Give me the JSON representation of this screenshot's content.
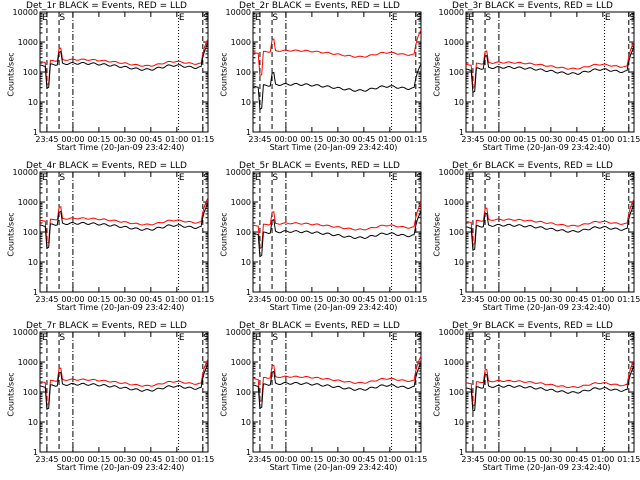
{
  "window_title": "",
  "x_tick_labels": [
    "23:45",
    "00:00",
    "00:15",
    "00:30",
    "00:45",
    "01:00",
    "01:15"
  ],
  "y_tick_labels": [
    "1",
    "10",
    "100",
    "1000",
    "10000"
  ],
  "ylabel": "Counts/sec",
  "xlabel": "Start Time (20-Jan-09 23:42:40)",
  "colors": {
    "events": "#000000",
    "lld": "#ff0000"
  },
  "chart_data": [
    {
      "type": "line",
      "title": "Det_1r BLACK = Events, RED = LLD",
      "xlabel": "Start Time (20-Jan-09 23:42:40)",
      "ylabel": "Counts/sec",
      "x_minutes_start": -17,
      "x_minutes_end": 80,
      "yscale": "log",
      "ylim": [
        1,
        10000
      ],
      "marker_labels": [
        {
          "text": "E",
          "at": -17
        },
        {
          "text": "S",
          "at": -7
        },
        {
          "text": "E",
          "at": 62
        },
        {
          "text": "S",
          "at": 76
        }
      ],
      "events_baseline": 150,
      "lld_baseline": 200
    },
    {
      "type": "line",
      "title": "Det_2r BLACK = Events, RED = LLD",
      "xlabel": "Start Time (20-Jan-09 23:42:40)",
      "ylabel": "Counts/sec",
      "x_minutes_start": -17,
      "x_minutes_end": 80,
      "yscale": "log",
      "ylim": [
        1,
        10000
      ],
      "marker_labels": [
        {
          "text": "E",
          "at": -17
        },
        {
          "text": "S",
          "at": -7
        },
        {
          "text": "E",
          "at": 62
        },
        {
          "text": "S",
          "at": 76
        }
      ],
      "events_baseline": 30,
      "lld_baseline": 400
    },
    {
      "type": "line",
      "title": "Det_3r BLACK = Events, RED = LLD",
      "xlabel": "Start Time (20-Jan-09 23:42:40)",
      "ylabel": "Counts/sec",
      "x_minutes_start": -17,
      "x_minutes_end": 80,
      "yscale": "log",
      "ylim": [
        1,
        10000
      ],
      "marker_labels": [
        {
          "text": "E",
          "at": -17
        },
        {
          "text": "S",
          "at": -7
        },
        {
          "text": "E",
          "at": 62
        },
        {
          "text": "S",
          "at": 76
        }
      ],
      "events_baseline": 110,
      "lld_baseline": 160
    },
    {
      "type": "line",
      "title": "Det_4r BLACK = Events, RED = LLD",
      "xlabel": "Start Time (20-Jan-09 23:42:40)",
      "ylabel": "Counts/sec",
      "x_minutes_start": -17,
      "x_minutes_end": 80,
      "yscale": "log",
      "ylim": [
        1,
        10000
      ],
      "marker_labels": [
        {
          "text": "E",
          "at": -17
        },
        {
          "text": "S",
          "at": -7
        },
        {
          "text": "E",
          "at": 62
        },
        {
          "text": "S",
          "at": 76
        }
      ],
      "events_baseline": 150,
      "lld_baseline": 220
    },
    {
      "type": "line",
      "title": "Det_5r BLACK = Events, RED = LLD",
      "xlabel": "Start Time (20-Jan-09 23:42:40)",
      "ylabel": "Counts/sec",
      "x_minutes_start": -17,
      "x_minutes_end": 80,
      "yscale": "log",
      "ylim": [
        1,
        10000
      ],
      "marker_labels": [
        {
          "text": "E",
          "at": -17
        },
        {
          "text": "S",
          "at": -7
        },
        {
          "text": "E",
          "at": 62
        },
        {
          "text": "S",
          "at": 76
        }
      ],
      "events_baseline": 80,
      "lld_baseline": 150
    },
    {
      "type": "line",
      "title": "Det_6r BLACK = Events, RED = LLD",
      "xlabel": "Start Time (20-Jan-09 23:42:40)",
      "ylabel": "Counts/sec",
      "x_minutes_start": -17,
      "x_minutes_end": 80,
      "yscale": "log",
      "ylim": [
        1,
        10000
      ],
      "marker_labels": [
        {
          "text": "E",
          "at": -17
        },
        {
          "text": "S",
          "at": -7
        },
        {
          "text": "E",
          "at": 62
        },
        {
          "text": "S",
          "at": 76
        }
      ],
      "events_baseline": 130,
      "lld_baseline": 200
    },
    {
      "type": "line",
      "title": "Det_7r BLACK = Events, RED = LLD",
      "xlabel": "Start Time (20-Jan-09 23:42:40)",
      "ylabel": "Counts/sec",
      "x_minutes_start": -17,
      "x_minutes_end": 80,
      "yscale": "log",
      "ylim": [
        1,
        10000
      ],
      "marker_labels": [
        {
          "text": "E",
          "at": -17
        },
        {
          "text": "S",
          "at": -7
        },
        {
          "text": "E",
          "at": 62
        },
        {
          "text": "S",
          "at": 76
        }
      ],
      "events_baseline": 140,
      "lld_baseline": 200
    },
    {
      "type": "line",
      "title": "Det_8r BLACK = Events, RED = LLD",
      "xlabel": "Start Time (20-Jan-09 23:42:40)",
      "ylabel": "Counts/sec",
      "x_minutes_start": -17,
      "x_minutes_end": 80,
      "yscale": "log",
      "ylim": [
        1,
        10000
      ],
      "marker_labels": [
        {
          "text": "E",
          "at": -17
        },
        {
          "text": "S",
          "at": -7
        },
        {
          "text": "E",
          "at": 62
        },
        {
          "text": "S",
          "at": 76
        }
      ],
      "events_baseline": 150,
      "lld_baseline": 250
    },
    {
      "type": "line",
      "title": "Det_9r BLACK = Events, RED = LLD",
      "xlabel": "Start Time (20-Jan-09 23:42:40)",
      "ylabel": "Counts/sec",
      "x_minutes_start": -17,
      "x_minutes_end": 80,
      "yscale": "log",
      "ylim": [
        1,
        10000
      ],
      "marker_labels": [
        {
          "text": "E",
          "at": -17
        },
        {
          "text": "S",
          "at": -7
        },
        {
          "text": "E",
          "at": 62
        },
        {
          "text": "S",
          "at": 76
        }
      ],
      "events_baseline": 120,
      "lld_baseline": 180
    }
  ]
}
